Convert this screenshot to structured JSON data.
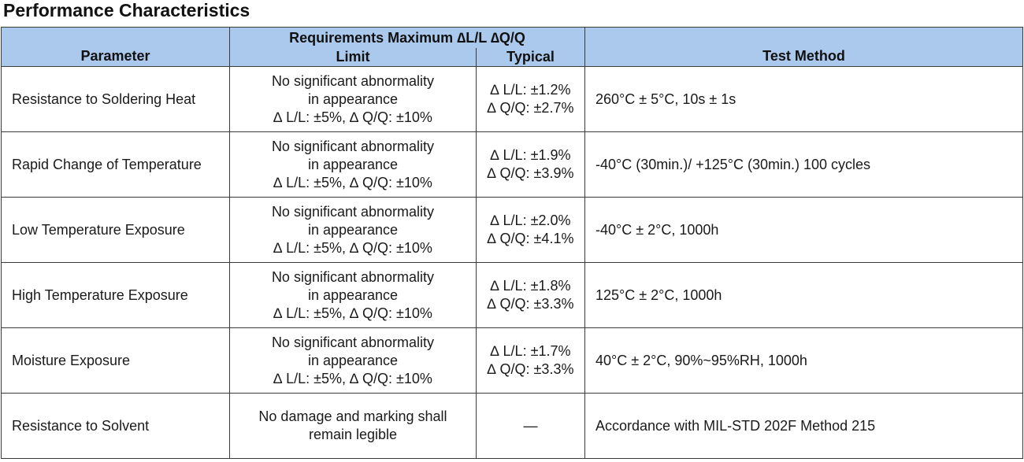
{
  "title": "Performance Characteristics",
  "headers": {
    "parameter": "Parameter",
    "requirements": "Requirements Maximum ∆L/L  ∆Q/Q",
    "limit": "Limit",
    "typical": "Typical",
    "test_method": "Test Method"
  },
  "rows": [
    {
      "parameter": "Resistance to Soldering Heat",
      "limit": [
        "No significant abnormality",
        "in appearance",
        "∆ L/L: ±5%, ∆ Q/Q: ±10%"
      ],
      "typical": [
        "∆ L/L: ±1.2%",
        "∆ Q/Q: ±2.7%"
      ],
      "method": "260°C ± 5°C, 10s ± 1s"
    },
    {
      "parameter": "Rapid Change of Temperature",
      "limit": [
        "No significant abnormality",
        "in appearance",
        "∆ L/L: ±5%, ∆ Q/Q: ±10%"
      ],
      "typical": [
        "∆ L/L: ±1.9%",
        "∆ Q/Q: ±3.9%"
      ],
      "method": "-40°C (30min.)/ +125°C (30min.) 100 cycles"
    },
    {
      "parameter": "Low Temperature Exposure",
      "limit": [
        "No significant abnormality",
        "in appearance",
        "∆ L/L: ±5%, ∆ Q/Q: ±10%"
      ],
      "typical": [
        "∆ L/L: ±2.0%",
        "∆ Q/Q: ±4.1%"
      ],
      "method": "-40°C ± 2°C, 1000h"
    },
    {
      "parameter": "High Temperature Exposure",
      "limit": [
        "No significant abnormality",
        "in appearance",
        "∆ L/L: ±5%, ∆ Q/Q: ±10%"
      ],
      "typical": [
        "∆ L/L: ±1.8%",
        "∆ Q/Q: ±3.3%"
      ],
      "method": "125°C ± 2°C, 1000h"
    },
    {
      "parameter": "Moisture Exposure",
      "limit": [
        "No significant abnormality",
        "in appearance",
        "∆ L/L: ±5%, ∆ Q/Q: ±10%"
      ],
      "typical": [
        "∆ L/L: ±1.7%",
        "∆ Q/Q: ±3.3%"
      ],
      "method": "40°C ± 2°C, 90%~95%RH, 1000h"
    },
    {
      "parameter": "Resistance to Solvent",
      "limit": [
        "No damage and marking shall",
        "remain legible"
      ],
      "typical": [
        "—"
      ],
      "method": "Accordance with MIL-STD 202F Method 215"
    }
  ]
}
